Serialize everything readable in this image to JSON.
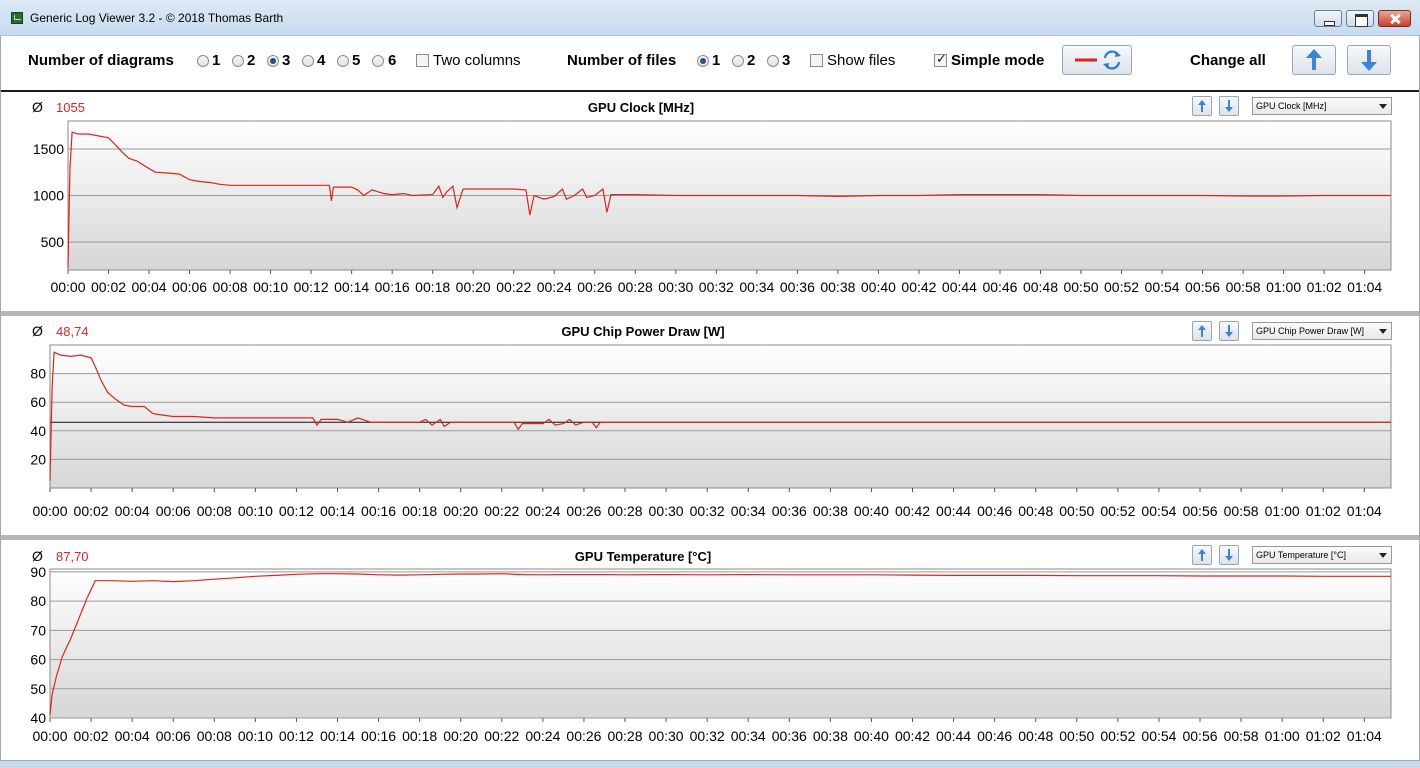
{
  "window": {
    "title": "Generic Log Viewer 3.2 - © 2018 Thomas Barth"
  },
  "toolbar": {
    "num_diagrams_label": "Number of diagrams",
    "diagram_options": [
      "1",
      "2",
      "3",
      "4",
      "5",
      "6"
    ],
    "diagram_selected": "3",
    "two_columns_label": "Two columns",
    "two_columns_checked": false,
    "num_files_label": "Number of files",
    "file_options": [
      "1",
      "2",
      "3"
    ],
    "file_selected": "1",
    "show_files_label": "Show files",
    "show_files_checked": false,
    "simple_mode_label": "Simple mode",
    "simple_mode_checked": true,
    "change_all_label": "Change all",
    "line_color": "#e0241b",
    "icons": [
      "red-line-icon",
      "refresh-icon",
      "arrow-up-icon",
      "arrow-down-icon"
    ]
  },
  "chart_data": [
    {
      "type": "line",
      "title": "GPU Clock [MHz]",
      "avg_symbol": "Ø",
      "avg_value": "1055",
      "selector_value": "GPU Clock [MHz]",
      "ylim": [
        200,
        1800
      ],
      "yticks": [
        500,
        1000,
        1500
      ],
      "xticks": [
        "00:00",
        "00:02",
        "00:04",
        "00:06",
        "00:08",
        "00:10",
        "00:12",
        "00:14",
        "00:16",
        "00:18",
        "00:20",
        "00:22",
        "00:24",
        "00:26",
        "00:28",
        "00:30",
        "00:32",
        "00:34",
        "00:36",
        "00:38",
        "00:40",
        "00:42",
        "00:44",
        "00:46",
        "00:48",
        "00:50",
        "00:52",
        "00:54",
        "00:56",
        "00:58",
        "01:00",
        "01:02",
        "01:04"
      ],
      "x_minutes_max": 65.3,
      "series": [
        {
          "color": "#e0241b",
          "points": [
            [
              0,
              220
            ],
            [
              0.1,
              1300
            ],
            [
              0.2,
              1680
            ],
            [
              0.5,
              1660
            ],
            [
              1,
              1660
            ],
            [
              1.5,
              1640
            ],
            [
              2,
              1620
            ],
            [
              2.4,
              1530
            ],
            [
              2.7,
              1460
            ],
            [
              3,
              1400
            ],
            [
              3.4,
              1370
            ],
            [
              3.7,
              1330
            ],
            [
              4,
              1290
            ],
            [
              4.3,
              1250
            ],
            [
              5,
              1240
            ],
            [
              5.5,
              1230
            ],
            [
              6,
              1170
            ],
            [
              6.5,
              1150
            ],
            [
              7,
              1140
            ],
            [
              7.5,
              1120
            ],
            [
              8,
              1110
            ],
            [
              9,
              1110
            ],
            [
              10,
              1110
            ],
            [
              11,
              1110
            ],
            [
              12,
              1110
            ],
            [
              12.9,
              1110
            ],
            [
              13,
              940
            ],
            [
              13.1,
              1090
            ],
            [
              14,
              1090
            ],
            [
              14.3,
              1060
            ],
            [
              14.6,
              1000
            ],
            [
              15,
              1060
            ],
            [
              15.6,
              1020
            ],
            [
              16,
              1010
            ],
            [
              16.6,
              1020
            ],
            [
              17,
              1000
            ],
            [
              18,
              1010
            ],
            [
              18.3,
              1100
            ],
            [
              18.5,
              980
            ],
            [
              18.7,
              1040
            ],
            [
              19,
              1100
            ],
            [
              19.2,
              870
            ],
            [
              19.5,
              1070
            ],
            [
              20,
              1070
            ],
            [
              21,
              1070
            ],
            [
              22,
              1070
            ],
            [
              22.6,
              1060
            ],
            [
              22.8,
              790
            ],
            [
              23,
              1000
            ],
            [
              23.5,
              960
            ],
            [
              24,
              990
            ],
            [
              24.4,
              1070
            ],
            [
              24.6,
              960
            ],
            [
              25,
              1000
            ],
            [
              25.4,
              1070
            ],
            [
              25.6,
              980
            ],
            [
              26,
              1000
            ],
            [
              26.4,
              1070
            ],
            [
              26.6,
              820
            ],
            [
              26.8,
              1010
            ],
            [
              28,
              1010
            ],
            [
              30,
              1000
            ],
            [
              32,
              1000
            ],
            [
              34,
              1000
            ],
            [
              36,
              1000
            ],
            [
              38,
              990
            ],
            [
              40,
              1000
            ],
            [
              42,
              1000
            ],
            [
              44,
              1010
            ],
            [
              46,
              1010
            ],
            [
              48,
              1010
            ],
            [
              50,
              1000
            ],
            [
              52,
              1000
            ],
            [
              54,
              1000
            ],
            [
              56,
              1000
            ],
            [
              58,
              995
            ],
            [
              60,
              995
            ],
            [
              62,
              1000
            ],
            [
              64,
              1000
            ],
            [
              65.3,
              1000
            ]
          ]
        }
      ]
    },
    {
      "type": "line",
      "title": "GPU Chip Power Draw [W]",
      "avg_symbol": "Ø",
      "avg_value": "48,74",
      "selector_value": "GPU Chip Power Draw [W]",
      "ylim": [
        0,
        100
      ],
      "yticks": [
        20,
        40,
        60,
        80
      ],
      "reference_line": 46,
      "xticks": [
        "00:00",
        "00:02",
        "00:04",
        "00:06",
        "00:08",
        "00:10",
        "00:12",
        "00:14",
        "00:16",
        "00:18",
        "00:20",
        "00:22",
        "00:24",
        "00:26",
        "00:28",
        "00:30",
        "00:32",
        "00:34",
        "00:36",
        "00:38",
        "00:40",
        "00:42",
        "00:44",
        "00:46",
        "00:48",
        "00:50",
        "00:52",
        "00:54",
        "00:56",
        "00:58",
        "01:00",
        "01:02",
        "01:04"
      ],
      "x_minutes_max": 65.3,
      "series": [
        {
          "color": "#e0241b",
          "points": [
            [
              0,
              5
            ],
            [
              0.1,
              70
            ],
            [
              0.2,
              95
            ],
            [
              0.5,
              93
            ],
            [
              1,
              92
            ],
            [
              1.5,
              93
            ],
            [
              2,
              91
            ],
            [
              2.2,
              85
            ],
            [
              2.5,
              75
            ],
            [
              2.8,
              67
            ],
            [
              3.2,
              62
            ],
            [
              3.6,
              58
            ],
            [
              4,
              57
            ],
            [
              4.6,
              57
            ],
            [
              5,
              52
            ],
            [
              5.5,
              51
            ],
            [
              6,
              50
            ],
            [
              7,
              50
            ],
            [
              8,
              49
            ],
            [
              9,
              49
            ],
            [
              10,
              49
            ],
            [
              11,
              49
            ],
            [
              12,
              49
            ],
            [
              12.8,
              49
            ],
            [
              13,
              44
            ],
            [
              13.2,
              48
            ],
            [
              14,
              48
            ],
            [
              14.5,
              46
            ],
            [
              15,
              49
            ],
            [
              15.6,
              46
            ],
            [
              16,
              46
            ],
            [
              17,
              46
            ],
            [
              18,
              46
            ],
            [
              18.3,
              48
            ],
            [
              18.6,
              44
            ],
            [
              19,
              48
            ],
            [
              19.2,
              43
            ],
            [
              19.5,
              46
            ],
            [
              20,
              46
            ],
            [
              21,
              46
            ],
            [
              22,
              46
            ],
            [
              22.6,
              46
            ],
            [
              22.8,
              41
            ],
            [
              23,
              45
            ],
            [
              24,
              45
            ],
            [
              24.3,
              48
            ],
            [
              24.6,
              44
            ],
            [
              25,
              45
            ],
            [
              25.3,
              48
            ],
            [
              25.6,
              44
            ],
            [
              26,
              46
            ],
            [
              26.4,
              46
            ],
            [
              26.6,
              42
            ],
            [
              26.8,
              46
            ],
            [
              28,
              46
            ],
            [
              30,
              46
            ],
            [
              35,
              46
            ],
            [
              40,
              46
            ],
            [
              45,
              46
            ],
            [
              50,
              46
            ],
            [
              55,
              46
            ],
            [
              60,
              46
            ],
            [
              65.3,
              46
            ]
          ]
        }
      ]
    },
    {
      "type": "line",
      "title": "GPU Temperature [°C]",
      "avg_symbol": "Ø",
      "avg_value": "87,70",
      "selector_value": "GPU Temperature [°C]",
      "ylim": [
        40,
        91
      ],
      "yticks": [
        40,
        50,
        60,
        70,
        80,
        90
      ],
      "xticks": [
        "00:00",
        "00:02",
        "00:04",
        "00:06",
        "00:08",
        "00:10",
        "00:12",
        "00:14",
        "00:16",
        "00:18",
        "00:20",
        "00:22",
        "00:24",
        "00:26",
        "00:28",
        "00:30",
        "00:32",
        "00:34",
        "00:36",
        "00:38",
        "00:40",
        "00:42",
        "00:44",
        "00:46",
        "00:48",
        "00:50",
        "00:52",
        "00:54",
        "00:56",
        "00:58",
        "01:00",
        "01:02",
        "01:04"
      ],
      "x_minutes_max": 65.3,
      "series": [
        {
          "color": "#e0241b",
          "points": [
            [
              0,
              41
            ],
            [
              0.1,
              48
            ],
            [
              0.3,
              54
            ],
            [
              0.6,
              61
            ],
            [
              1,
              67
            ],
            [
              1.4,
              74
            ],
            [
              1.8,
              81
            ],
            [
              2.2,
              87
            ],
            [
              3,
              87
            ],
            [
              4,
              86.8
            ],
            [
              5,
              87
            ],
            [
              6,
              86.7
            ],
            [
              7,
              87
            ],
            [
              8,
              87.5
            ],
            [
              9,
              88
            ],
            [
              10,
              88.5
            ],
            [
              11,
              88.8
            ],
            [
              12,
              89.2
            ],
            [
              13,
              89.4
            ],
            [
              14,
              89.4
            ],
            [
              15,
              89.3
            ],
            [
              16,
              89
            ],
            [
              17,
              88.9
            ],
            [
              18,
              89
            ],
            [
              19,
              89.2
            ],
            [
              20,
              89.3
            ],
            [
              21,
              89.3
            ],
            [
              22,
              89.4
            ],
            [
              23,
              89.1
            ],
            [
              24,
              89
            ],
            [
              25,
              89.1
            ],
            [
              26,
              89.1
            ],
            [
              27,
              89.1
            ],
            [
              28,
              89
            ],
            [
              30,
              89.1
            ],
            [
              32,
              89
            ],
            [
              34,
              89.1
            ],
            [
              36,
              89
            ],
            [
              38,
              89
            ],
            [
              40,
              89
            ],
            [
              42,
              88.9
            ],
            [
              44,
              88.8
            ],
            [
              46,
              88.8
            ],
            [
              48,
              88.8
            ],
            [
              50,
              88.7
            ],
            [
              52,
              88.7
            ],
            [
              54,
              88.7
            ],
            [
              56,
              88.6
            ],
            [
              58,
              88.6
            ],
            [
              60,
              88.6
            ],
            [
              62,
              88.5
            ],
            [
              64,
              88.5
            ],
            [
              65.3,
              88.5
            ]
          ]
        }
      ]
    }
  ]
}
